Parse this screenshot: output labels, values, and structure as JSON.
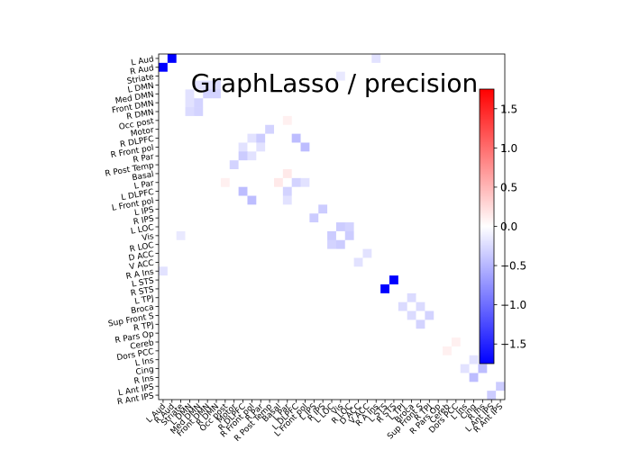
{
  "chart_data": {
    "type": "heatmap",
    "title": "GraphLasso / precision",
    "labels": [
      "L Aud",
      "R Aud",
      "Striate",
      "L DMN",
      "Med DMN",
      "Front DMN",
      "R DMN",
      "Occ post",
      "Motor",
      "R DLPFC",
      "R Front pol",
      "R Par",
      "R Post Temp",
      "Basal",
      "L Par",
      "L DLPFC",
      "L Front pol",
      "L IPS",
      "R IPS",
      "L LOC",
      "Vis",
      "R LOC",
      "D ACC",
      "V ACC",
      "R A Ins",
      "L STS",
      "R STS",
      "L TPJ",
      "Broca",
      "Sup Front S",
      "R TPJ",
      "R Pars Op",
      "Cereb",
      "Dors PCC",
      "L Ins",
      "Cing",
      "R Ins",
      "L Ant IPS",
      "R Ant IPS"
    ],
    "colormap": "bwr",
    "vmin": -1.75,
    "vmax": 1.75,
    "colorbar_ticks": [
      1.5,
      1.0,
      0.5,
      0.0,
      -0.5,
      -1.0,
      -1.5
    ],
    "colorbar_tick_labels": [
      "1.5",
      "1.0",
      "0.5",
      "0.0",
      "−0.5",
      "−1.0",
      "−1.5"
    ],
    "diagonal_masked": true,
    "background_value": 0.0,
    "cells": [
      {
        "row": "L Aud",
        "col": "R Aud",
        "value": -1.75
      },
      {
        "row": "R Aud",
        "col": "L Aud",
        "value": -1.75
      },
      {
        "row": "L STS",
        "col": "R STS",
        "value": -1.75
      },
      {
        "row": "R STS",
        "col": "L STS",
        "value": -1.75
      },
      {
        "row": "L DMN",
        "col": "Med DMN",
        "value": -0.2
      },
      {
        "row": "Med DMN",
        "col": "L DMN",
        "value": -0.2
      },
      {
        "row": "Med DMN",
        "col": "Front DMN",
        "value": -0.3
      },
      {
        "row": "Front DMN",
        "col": "Med DMN",
        "value": -0.3
      },
      {
        "row": "Med DMN",
        "col": "R DMN",
        "value": -0.3
      },
      {
        "row": "R DMN",
        "col": "Med DMN",
        "value": -0.3
      },
      {
        "row": "L DMN",
        "col": "R DMN",
        "value": -0.25
      },
      {
        "row": "R DMN",
        "col": "L DMN",
        "value": -0.25
      },
      {
        "row": "Front DMN",
        "col": "L DMN",
        "value": -0.2
      },
      {
        "row": "L DMN",
        "col": "Front DMN",
        "value": -0.2
      },
      {
        "row": "R DLPFC",
        "col": "R Par",
        "value": -0.35
      },
      {
        "row": "R Par",
        "col": "R DLPFC",
        "value": -0.35
      },
      {
        "row": "R DLPFC",
        "col": "R Front pol",
        "value": -0.2
      },
      {
        "row": "R Front pol",
        "col": "R DLPFC",
        "value": -0.2
      },
      {
        "row": "R Front pol",
        "col": "R Par",
        "value": -0.2
      },
      {
        "row": "R Par",
        "col": "R Front pol",
        "value": -0.2
      },
      {
        "row": "Motor",
        "col": "R Post Temp",
        "value": -0.3
      },
      {
        "row": "R Post Temp",
        "col": "Motor",
        "value": -0.3
      },
      {
        "row": "R DLPFC",
        "col": "L DLPFC",
        "value": -0.45
      },
      {
        "row": "L DLPFC",
        "col": "R DLPFC",
        "value": -0.45
      },
      {
        "row": "R Front pol",
        "col": "L Front pol",
        "value": -0.45
      },
      {
        "row": "L Front pol",
        "col": "R Front pol",
        "value": -0.45
      },
      {
        "row": "L Par",
        "col": "L DLPFC",
        "value": -0.3
      },
      {
        "row": "L DLPFC",
        "col": "L Par",
        "value": -0.3
      },
      {
        "row": "L Par",
        "col": "L Front pol",
        "value": -0.2
      },
      {
        "row": "L Front pol",
        "col": "L Par",
        "value": -0.2
      },
      {
        "row": "L IPS",
        "col": "R IPS",
        "value": -0.35
      },
      {
        "row": "R IPS",
        "col": "L IPS",
        "value": -0.35
      },
      {
        "row": "L LOC",
        "col": "Vis",
        "value": -0.35
      },
      {
        "row": "Vis",
        "col": "L LOC",
        "value": -0.35
      },
      {
        "row": "Vis",
        "col": "R LOC",
        "value": -0.35
      },
      {
        "row": "R LOC",
        "col": "Vis",
        "value": -0.35
      },
      {
        "row": "L LOC",
        "col": "R LOC",
        "value": -0.3
      },
      {
        "row": "R LOC",
        "col": "L LOC",
        "value": -0.3
      },
      {
        "row": "D ACC",
        "col": "V ACC",
        "value": -0.2
      },
      {
        "row": "V ACC",
        "col": "D ACC",
        "value": -0.2
      },
      {
        "row": "L TPJ",
        "col": "Broca",
        "value": -0.25
      },
      {
        "row": "Broca",
        "col": "L TPJ",
        "value": -0.25
      },
      {
        "row": "Broca",
        "col": "Sup Front S",
        "value": -0.25
      },
      {
        "row": "Sup Front S",
        "col": "Broca",
        "value": -0.25
      },
      {
        "row": "Sup Front S",
        "col": "R TPJ",
        "value": -0.3
      },
      {
        "row": "R TPJ",
        "col": "Sup Front S",
        "value": -0.3
      },
      {
        "row": "L Ins",
        "col": "Cing",
        "value": -0.2
      },
      {
        "row": "Cing",
        "col": "L Ins",
        "value": -0.2
      },
      {
        "row": "Cing",
        "col": "R Ins",
        "value": -0.45
      },
      {
        "row": "R Ins",
        "col": "Cing",
        "value": -0.45
      },
      {
        "row": "L Ant IPS",
        "col": "R Ant IPS",
        "value": -0.35
      },
      {
        "row": "R Ant IPS",
        "col": "L Ant IPS",
        "value": -0.35
      },
      {
        "row": "R A Ins",
        "col": "L Aud",
        "value": -0.2
      },
      {
        "row": "L Aud",
        "col": "R A Ins",
        "value": -0.2
      },
      {
        "row": "Striate",
        "col": "Vis",
        "value": -0.15
      },
      {
        "row": "Vis",
        "col": "Striate",
        "value": -0.15
      },
      {
        "row": "L Par",
        "col": "Basal",
        "value": 0.15
      },
      {
        "row": "Basal",
        "col": "L Par",
        "value": 0.15
      },
      {
        "row": "Occ post",
        "col": "L Par",
        "value": 0.1
      },
      {
        "row": "L Par",
        "col": "Occ post",
        "value": 0.1
      },
      {
        "row": "Dors PCC",
        "col": "Cereb",
        "value": 0.1
      },
      {
        "row": "Cereb",
        "col": "Dors PCC",
        "value": 0.1
      }
    ]
  }
}
